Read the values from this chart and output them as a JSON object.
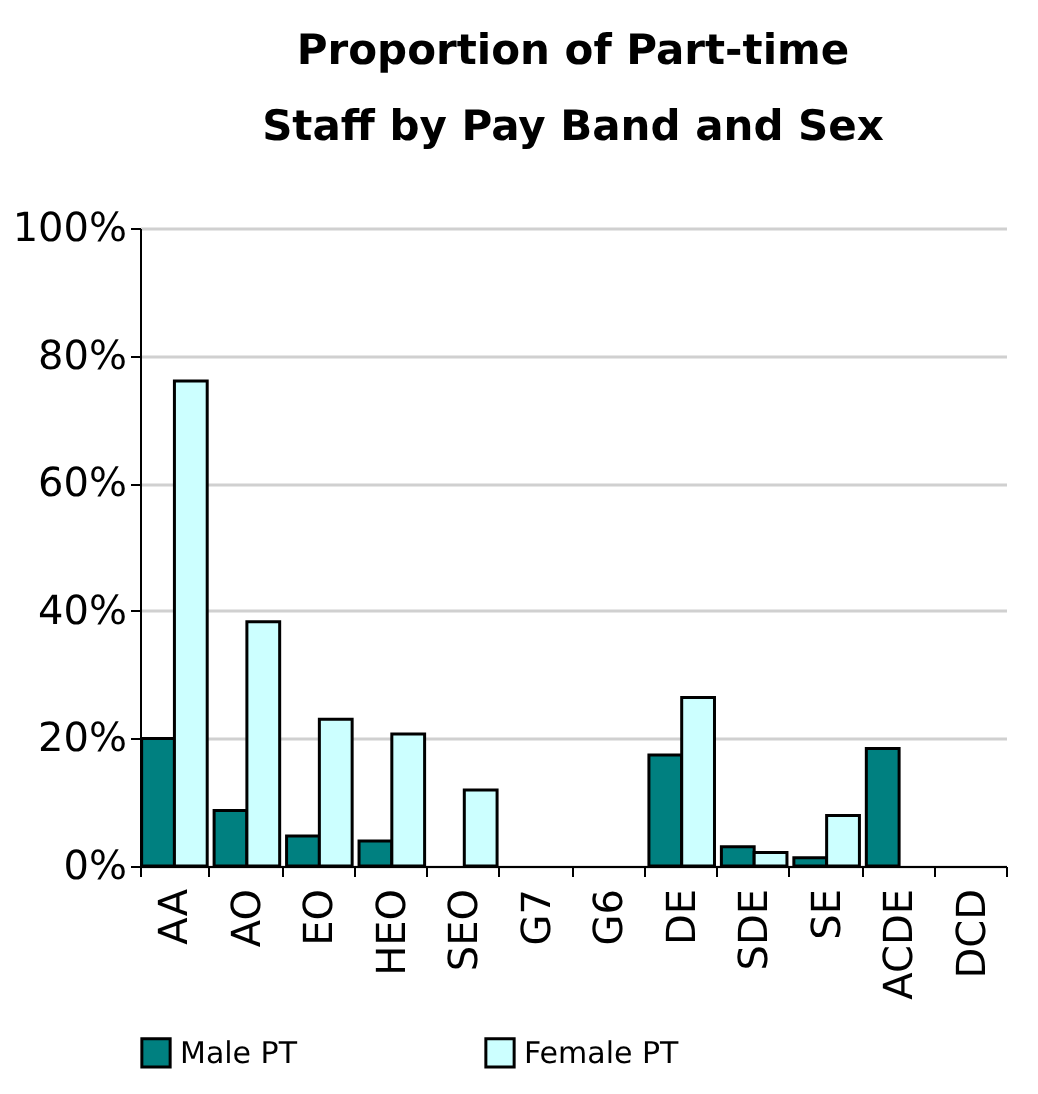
{
  "chart_data": {
    "type": "bar",
    "title": [
      "Proportion of Part-time",
      "Staff by Pay Band and Sex"
    ],
    "categories": [
      "AA",
      "AO",
      "EO",
      "HEO",
      "SEO",
      "G7",
      "G6",
      "DE",
      "SDE",
      "SE",
      "ACDE",
      "DCD"
    ],
    "series": [
      {
        "name": "Male PT",
        "color": "#008080",
        "values": [
          20,
          8.7,
          4.7,
          3.9,
          null,
          null,
          null,
          17.4,
          3,
          1.3,
          18.4,
          null
        ]
      },
      {
        "name": "Female PT",
        "color": "#ccffff",
        "values": [
          76,
          38.3,
          23,
          20.7,
          11.9,
          null,
          null,
          26.4,
          2.1,
          7.9,
          null,
          null
        ]
      }
    ],
    "ylim": [
      0,
      100
    ],
    "yticks": [
      {
        "value": 0,
        "label": "0%"
      },
      {
        "value": 20,
        "label": "20%"
      },
      {
        "value": 40,
        "label": "40%"
      },
      {
        "value": 60,
        "label": "60%"
      },
      {
        "value": 80,
        "label": "80%"
      },
      {
        "value": 100,
        "label": "100%"
      }
    ],
    "grid": "y",
    "legend": "bottom"
  }
}
